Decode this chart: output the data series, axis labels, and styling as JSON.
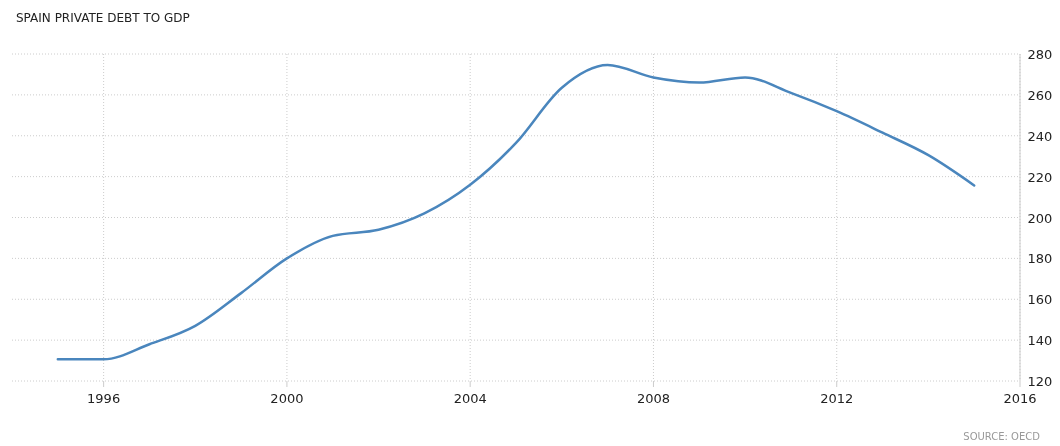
{
  "chart_data": {
    "type": "line",
    "title": "SPAIN PRIVATE DEBT TO GDP",
    "x": [
      1995,
      1996,
      1997,
      1998,
      1999,
      2000,
      2001,
      2002,
      2003,
      2004,
      2005,
      2006,
      2007,
      2008,
      2009,
      2010,
      2011,
      2012,
      2013,
      2014,
      2015
    ],
    "series": [
      {
        "color": "#4a86bd",
        "values": [
          130.6,
          130.6,
          138,
          147,
          163,
          180,
          191,
          194,
          202,
          216,
          236.5,
          263.5,
          274.6,
          268.5,
          266,
          268.5,
          261,
          252,
          241.5,
          230.5,
          215.7
        ]
      }
    ],
    "xlim": [
      1994,
      2016
    ],
    "xticks": [
      1996,
      2000,
      2004,
      2008,
      2012,
      2016
    ],
    "ylim": [
      120,
      280
    ],
    "yticks": [
      120,
      140,
      160,
      180,
      200,
      220,
      240,
      260,
      280
    ],
    "grid": true,
    "marker": "none",
    "line_style": "solid",
    "annotations": [
      "SOURCE: OECD"
    ]
  }
}
